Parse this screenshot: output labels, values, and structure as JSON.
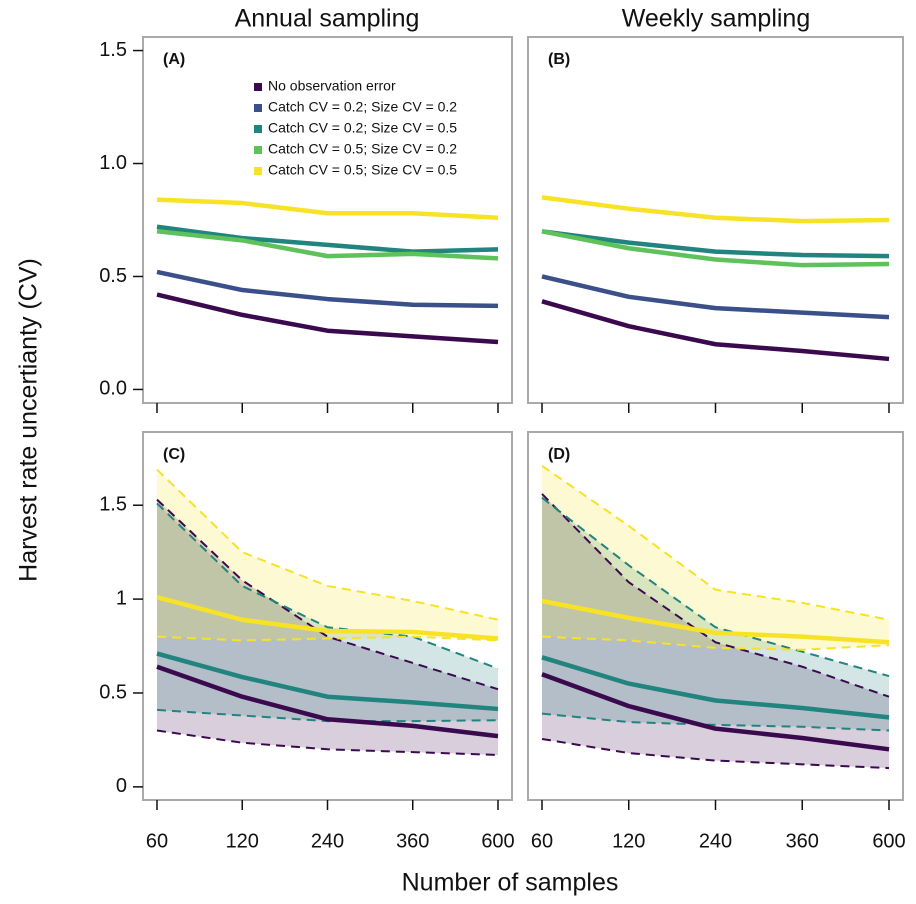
{
  "figure": {
    "column_titles": [
      "Annual sampling",
      "Weekly sampling"
    ],
    "xlabel": "Number of samples",
    "ylabel": "Harvest rate uncertianty (CV)"
  },
  "chart_data": [
    {
      "type": "line",
      "panel_label": "(A)",
      "ylim": [
        -0.06,
        1.56
      ],
      "yticks": [
        {
          "value": 0,
          "label": "0.0"
        },
        0.5,
        {
          "value": 1,
          "label": "1.0"
        },
        1.5
      ],
      "legend": "top",
      "series": [
        {
          "name": "No observation error",
          "color": "#3b0a4e",
          "values": [
            0.42,
            0.33,
            0.26,
            0.235,
            0.21
          ]
        },
        {
          "name": "Catch CV = 0.2; Size CV = 0.2",
          "color": "#3b4f8a",
          "values": [
            0.52,
            0.44,
            0.4,
            0.375,
            0.37
          ]
        },
        {
          "name": "Catch CV = 0.2; Size CV = 0.5",
          "color": "#21847e",
          "values": [
            0.72,
            0.67,
            0.64,
            0.61,
            0.62
          ]
        },
        {
          "name": "Catch CV = 0.5; Size CV = 0.2",
          "color": "#5ec15a",
          "values": [
            0.7,
            0.66,
            0.59,
            0.6,
            0.58
          ]
        },
        {
          "name": "Catch CV = 0.5; Size CV = 0.5",
          "color": "#f7e225",
          "values": [
            0.84,
            0.825,
            0.78,
            0.78,
            0.76
          ]
        }
      ]
    },
    {
      "type": "line",
      "panel_label": "(B)",
      "ylim": [
        -0.06,
        1.56
      ],
      "series": [
        {
          "color": "#3b0a4e",
          "values": [
            0.39,
            0.28,
            0.2,
            0.17,
            0.135
          ]
        },
        {
          "color": "#3b4f8a",
          "values": [
            0.5,
            0.41,
            0.36,
            0.34,
            0.32
          ]
        },
        {
          "color": "#21847e",
          "values": [
            0.7,
            0.65,
            0.61,
            0.595,
            0.59
          ]
        },
        {
          "color": "#5ec15a",
          "values": [
            0.7,
            0.625,
            0.575,
            0.55,
            0.555
          ]
        },
        {
          "color": "#f7e225",
          "values": [
            0.85,
            0.8,
            0.76,
            0.745,
            0.75
          ]
        }
      ]
    },
    {
      "type": "line",
      "panel_label": "(C)",
      "categories": [
        "60",
        "120",
        "240",
        "360",
        "600"
      ],
      "ylim": [
        -0.07,
        1.89
      ],
      "yticks": [
        0,
        0.5,
        1,
        1.5
      ],
      "series": [
        {
          "color": "#3b0a4e",
          "values": [
            0.64,
            0.48,
            0.36,
            0.325,
            0.27
          ],
          "lower": [
            0.3,
            0.235,
            0.2,
            0.185,
            0.17
          ],
          "upper": [
            1.53,
            1.1,
            0.8,
            0.66,
            0.52
          ]
        },
        {
          "color": "#21847e",
          "values": [
            0.71,
            0.585,
            0.48,
            0.45,
            0.415
          ],
          "lower": [
            0.41,
            0.38,
            0.35,
            0.35,
            0.355
          ],
          "upper": [
            1.51,
            1.07,
            0.85,
            0.8,
            0.63
          ]
        },
        {
          "color": "#f7e225",
          "values": [
            1.01,
            0.89,
            0.83,
            0.825,
            0.79
          ],
          "lower": [
            0.8,
            0.78,
            0.79,
            0.8,
            0.78
          ],
          "upper": [
            1.69,
            1.25,
            1.07,
            0.99,
            0.89
          ]
        }
      ]
    },
    {
      "type": "line",
      "panel_label": "(D)",
      "categories": [
        "60",
        "120",
        "240",
        "360",
        "600"
      ],
      "ylim": [
        -0.07,
        1.89
      ],
      "series": [
        {
          "color": "#3b0a4e",
          "values": [
            0.6,
            0.43,
            0.31,
            0.26,
            0.2
          ],
          "lower": [
            0.255,
            0.18,
            0.14,
            0.12,
            0.1
          ],
          "upper": [
            1.56,
            1.09,
            0.77,
            0.64,
            0.48
          ]
        },
        {
          "color": "#21847e",
          "values": [
            0.69,
            0.55,
            0.46,
            0.42,
            0.37
          ],
          "lower": [
            0.39,
            0.345,
            0.33,
            0.32,
            0.3
          ],
          "upper": [
            1.54,
            1.18,
            0.85,
            0.72,
            0.59
          ]
        },
        {
          "color": "#f7e225",
          "values": [
            0.99,
            0.9,
            0.82,
            0.8,
            0.77
          ],
          "lower": [
            0.8,
            0.78,
            0.74,
            0.73,
            0.755
          ],
          "upper": [
            1.71,
            1.39,
            1.05,
            0.98,
            0.89
          ]
        }
      ]
    }
  ]
}
